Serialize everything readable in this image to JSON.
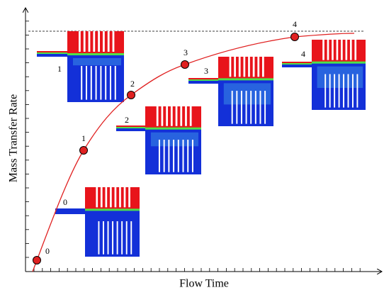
{
  "axes": {
    "y_label": "Mass Transfer Rate",
    "x_label": "Flow Time"
  },
  "points": [
    {
      "label": "0"
    },
    {
      "label": "1"
    },
    {
      "label": "2"
    },
    {
      "label": "3"
    },
    {
      "label": "4"
    }
  ]
}
